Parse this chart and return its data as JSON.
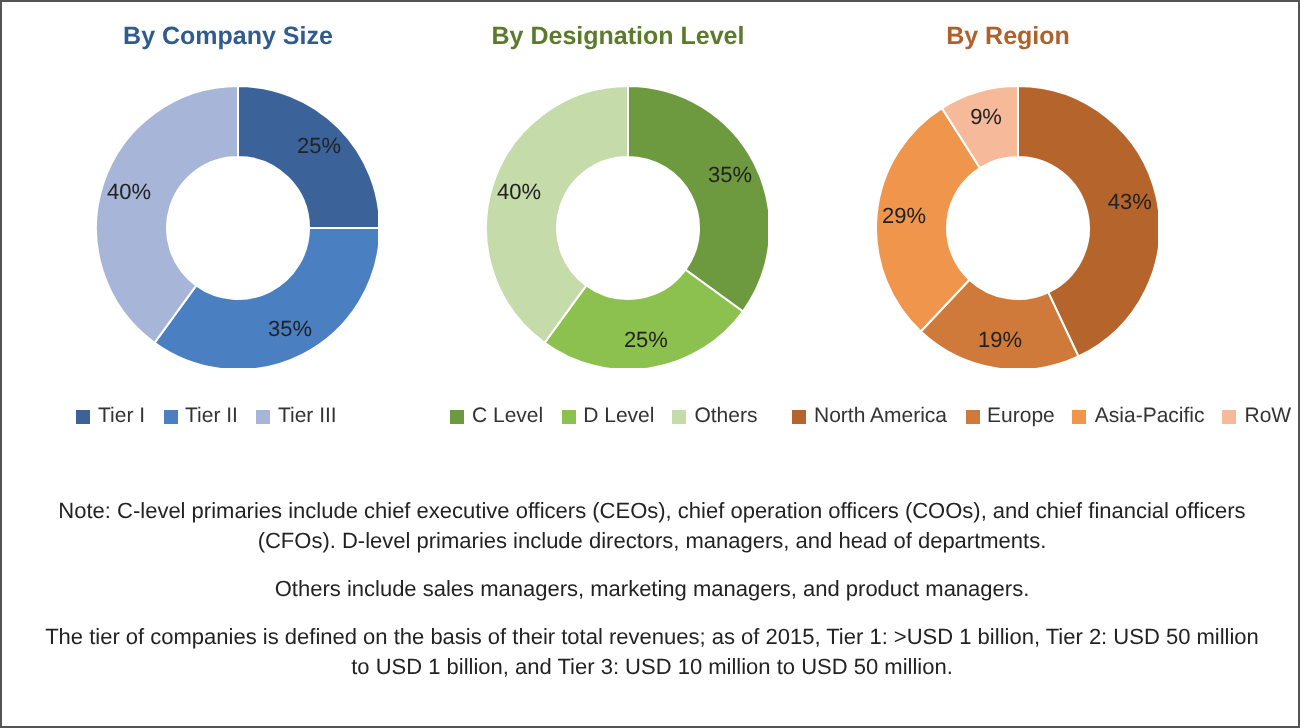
{
  "chart_data": [
    {
      "type": "donut",
      "title": "By Company Size",
      "categories": [
        "Tier I",
        "Tier II",
        "Tier III"
      ],
      "values": [
        25,
        35,
        40
      ],
      "colors": [
        "#3b6299",
        "#4a7fc1",
        "#a7b5d8"
      ],
      "value_labels": [
        "25%",
        "35%",
        "40%"
      ],
      "legend": "bottom"
    },
    {
      "type": "donut",
      "title": "By Designation Level",
      "categories": [
        "C Level",
        "D Level",
        "Others"
      ],
      "values": [
        35,
        25,
        40
      ],
      "colors": [
        "#6d9a3e",
        "#8dc14f",
        "#c5dba9"
      ],
      "value_labels": [
        "35%",
        "25%",
        "40%"
      ],
      "legend": "bottom"
    },
    {
      "type": "donut",
      "title": "By Region",
      "categories": [
        "North America",
        "Europe",
        "Asia-Pacific",
        "RoW"
      ],
      "values": [
        43,
        19,
        29,
        9
      ],
      "colors": [
        "#b5652b",
        "#cf7a3a",
        "#f0954c",
        "#f6b99a"
      ],
      "value_labels": [
        "43%",
        "19%",
        "29%",
        "9%"
      ],
      "legend": "bottom",
      "annotations": [
        "Note: C-level primaries include chief executive officers (CEOs), chief operation officers (COOs), and chief financial officers (CFOs). D-level primaries include directors, managers, and head of departments.",
        "Others include sales managers, marketing managers, and product managers.",
        "The tier of companies is defined on the basis of their total revenues; as of 2015, Tier 1: >USD 1 billion, Tier 2: USD 50 million to USD 1 billion, and Tier 3: USD 10 million to USD 50 million."
      ]
    }
  ]
}
